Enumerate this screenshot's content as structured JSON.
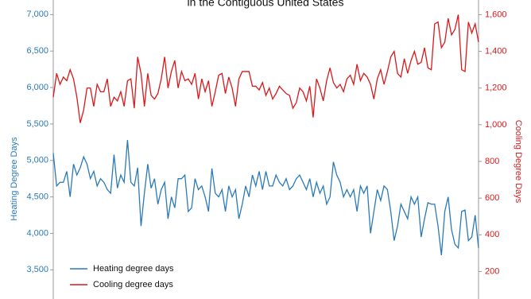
{
  "chart_data": {
    "type": "line",
    "title": "in the Contiguous United States",
    "ylabel": "Heating Degree Days",
    "y2label": "Cooling Degree Days",
    "ylim": [
      3100,
      7200
    ],
    "yticks": [
      {
        "value": 3500,
        "label": "3,500"
      },
      {
        "value": 4000,
        "label": "4,000"
      },
      {
        "value": 4500,
        "label": "4,500"
      },
      {
        "value": 5000,
        "label": "5,000"
      },
      {
        "value": 5500,
        "label": "5,500"
      },
      {
        "value": 6000,
        "label": "6,000"
      },
      {
        "value": 6500,
        "label": "6,500"
      },
      {
        "value": 7000,
        "label": "7,000"
      }
    ],
    "y2lim": [
      50,
      1680
    ],
    "y2ticks": [
      200,
      400,
      600,
      800,
      {
        "value": 1000,
        "label": "1,000"
      },
      {
        "value": 1200,
        "label": "1,200"
      },
      {
        "value": 1400,
        "label": "1,400"
      },
      {
        "value": 1600,
        "label": "1,600"
      }
    ],
    "ycolor": "#2a7ab8",
    "y2color": "#d7191c",
    "series": [
      {
        "name": "Heating degree days",
        "color": "#2a7ab8",
        "values": [
          5100,
          4650,
          4700,
          4700,
          4850,
          4500,
          4950,
          4800,
          4900,
          5050,
          4950,
          4750,
          4850,
          4650,
          4750,
          4700,
          4600,
          4550,
          5080,
          4620,
          4800,
          4700,
          5280,
          4700,
          4650,
          4900,
          4100,
          4550,
          4950,
          4620,
          4750,
          4400,
          4600,
          4700,
          4200,
          4500,
          4350,
          4750,
          4750,
          4800,
          4300,
          4350,
          4750,
          4600,
          4650,
          4500,
          4300,
          4890,
          4550,
          4500,
          4600,
          4300,
          4650,
          4500,
          4600,
          4200,
          4400,
          4650,
          4500,
          4800,
          4650,
          4850,
          4600,
          4850,
          4650,
          4650,
          4800,
          4700,
          4650,
          4750,
          4600,
          4650,
          4750,
          4800,
          4700,
          4600,
          4750,
          4500,
          4700,
          4550,
          4650,
          4400,
          4500,
          4980,
          4800,
          4700,
          4500,
          4600,
          4500,
          4600,
          4300,
          4650,
          4550,
          4650,
          4000,
          4300,
          4600,
          4450,
          4650,
          4600,
          4300,
          3900,
          4100,
          4400,
          4300,
          4200,
          4500,
          4400,
          4500,
          3950,
          4200,
          4420,
          4400,
          4400,
          4100,
          3700,
          4300,
          4500,
          4050,
          3850,
          3800,
          4300,
          4320,
          3900,
          3950,
          4250,
          3800
        ]
      },
      {
        "name": "Cooling degree days",
        "color": "#d7191c",
        "axis": "y2",
        "values": [
          1150,
          1280,
          1220,
          1260,
          1240,
          1300,
          1250,
          1150,
          1010,
          1080,
          1200,
          1200,
          1100,
          1220,
          1180,
          1180,
          1250,
          1100,
          1150,
          1130,
          1180,
          1100,
          1240,
          1250,
          1090,
          1370,
          1280,
          1100,
          1280,
          1160,
          1140,
          1170,
          1250,
          1370,
          1200,
          1290,
          1350,
          1200,
          1290,
          1240,
          1250,
          1220,
          1280,
          1140,
          1250,
          1180,
          1240,
          1100,
          1180,
          1270,
          1280,
          1170,
          1260,
          1200,
          1100,
          1250,
          1290,
          1290,
          1290,
          1210,
          1210,
          1190,
          1230,
          1160,
          1200,
          1140,
          1170,
          1210,
          1190,
          1170,
          1160,
          1090,
          1120,
          1200,
          1180,
          1130,
          1210,
          1040,
          1250,
          1200,
          1130,
          1240,
          1310,
          1230,
          1200,
          1220,
          1180,
          1250,
          1270,
          1220,
          1330,
          1240,
          1280,
          1260,
          1220,
          1140,
          1250,
          1300,
          1220,
          1290,
          1370,
          1400,
          1280,
          1260,
          1360,
          1280,
          1350,
          1400,
          1330,
          1340,
          1420,
          1310,
          1300,
          1550,
          1560,
          1420,
          1450,
          1580,
          1490,
          1520,
          1600,
          1300,
          1290,
          1560,
          1500,
          1550,
          1450
        ]
      }
    ]
  }
}
